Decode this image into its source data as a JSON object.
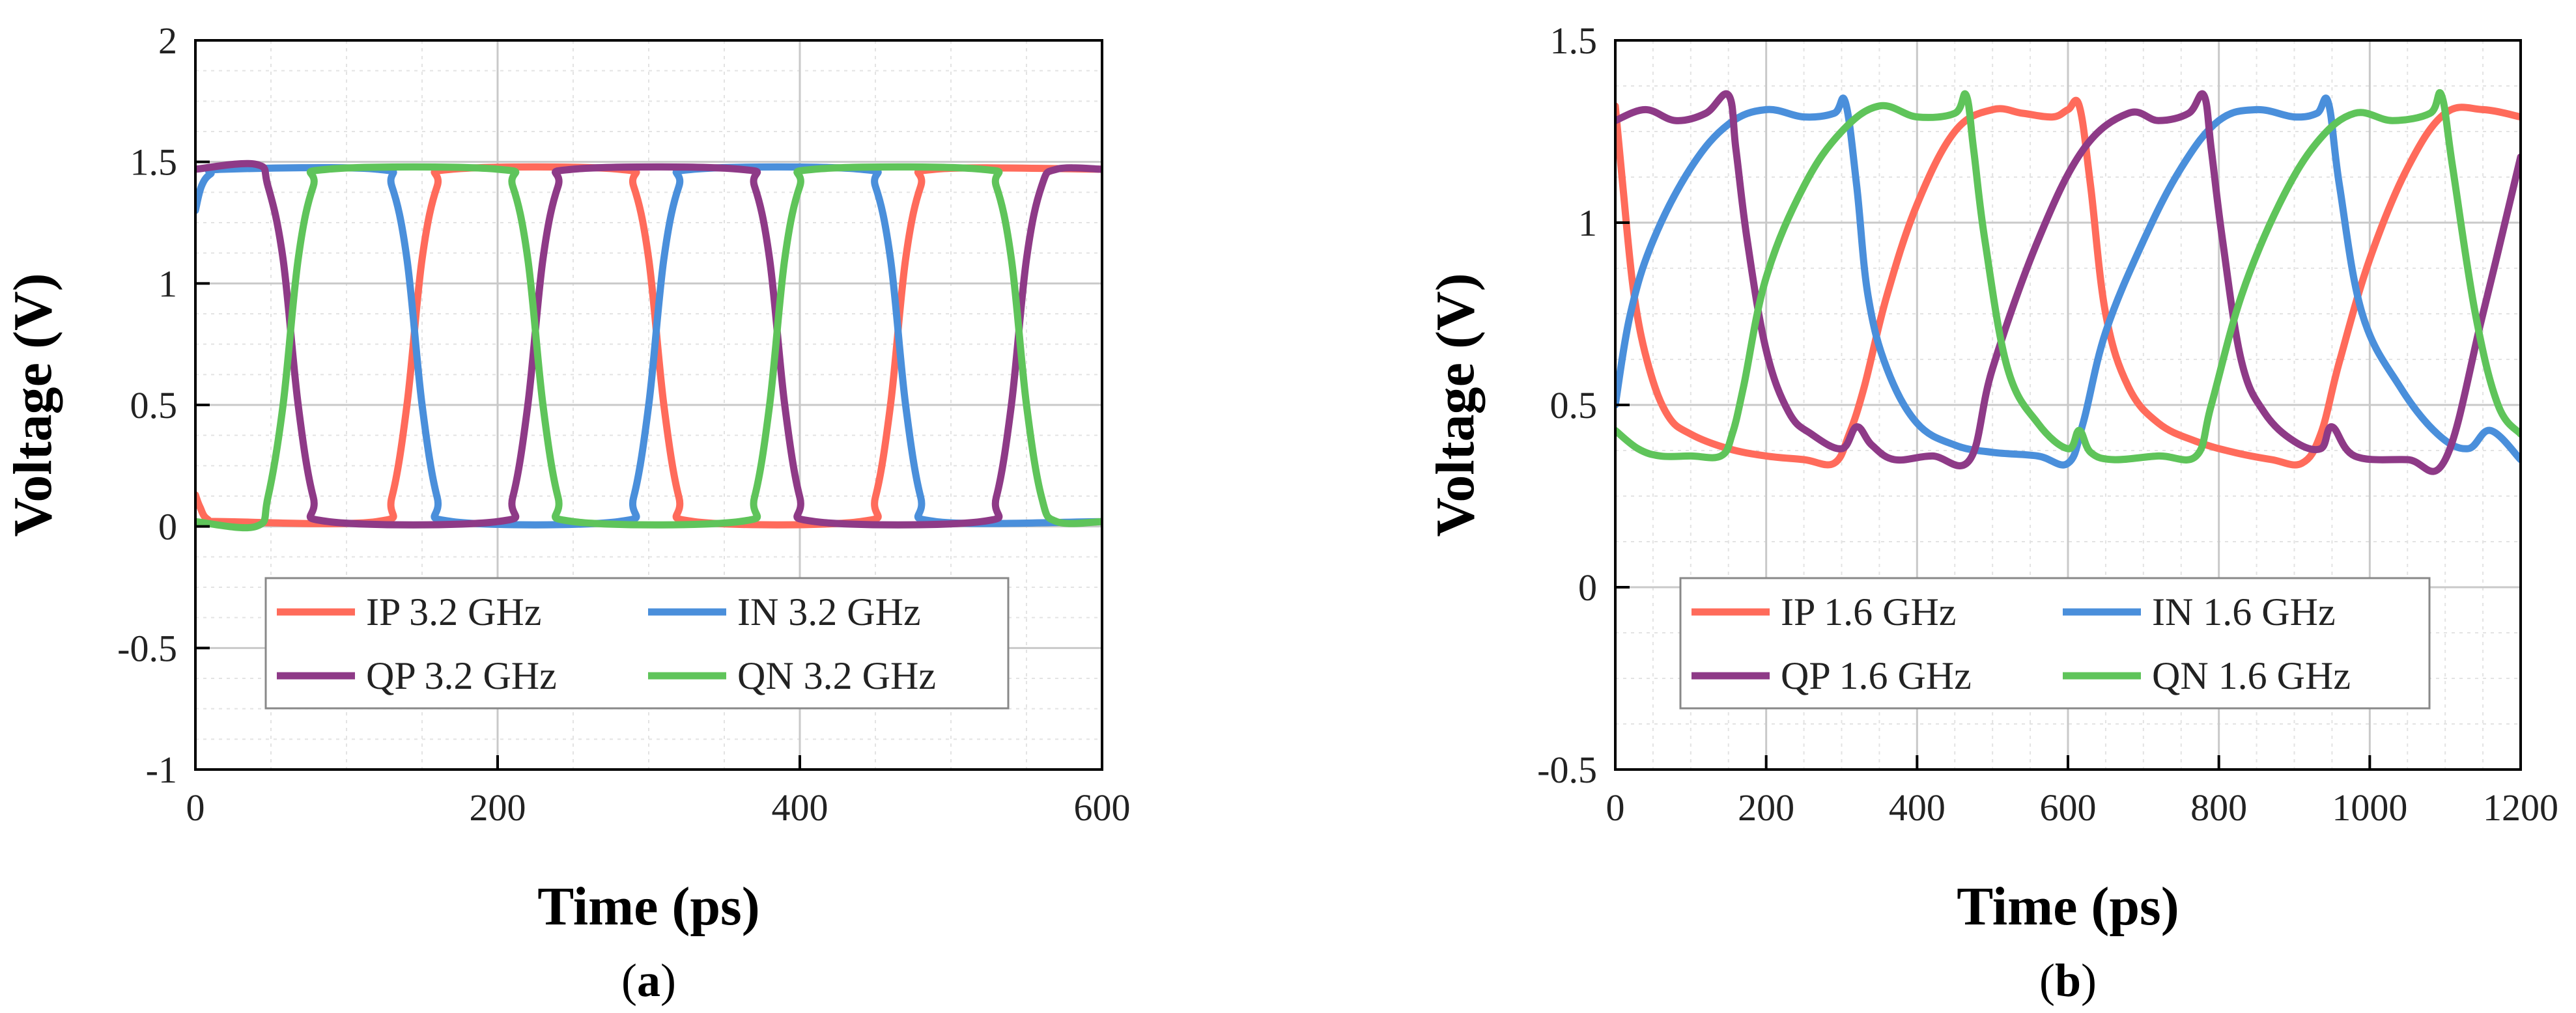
{
  "chart_data": [
    {
      "id": "a",
      "type": "line",
      "caption": "a",
      "xlabel": "Time (ps)",
      "ylabel": "Voltage (V)",
      "xlim": [
        0,
        600
      ],
      "ylim": [
        -1,
        2
      ],
      "xticks": [
        0,
        200,
        400,
        600
      ],
      "yticks": [
        -1,
        -0.5,
        0,
        0.5,
        1,
        1.5,
        2
      ],
      "ytick_labels": [
        "-1",
        "-0.5",
        "0",
        "0.5",
        "1",
        "1.5",
        "2"
      ],
      "grid": true,
      "legend_position": "bottom-center",
      "legend_columns": 2,
      "series": [
        {
          "name": "IP 3.2 GHz",
          "color": "#ff6b5b",
          "x": [
            0,
            3,
            8,
            20,
            120,
            130,
            140,
            150,
            160,
            170,
            280,
            290,
            300,
            310,
            320,
            330,
            440,
            450,
            460,
            470,
            480,
            490,
            600
          ],
          "y": [
            0.13,
            0.08,
            0.03,
            0.02,
            0.02,
            0.12,
            0.5,
            1.1,
            1.4,
            1.47,
            1.47,
            1.4,
            1.1,
            0.5,
            0.12,
            0.02,
            0.02,
            0.12,
            0.5,
            1.1,
            1.4,
            1.47,
            1.47
          ]
        },
        {
          "name": "IN 3.2 GHz",
          "color": "#4a8fdb",
          "x": [
            0,
            4,
            10,
            20,
            120,
            130,
            140,
            150,
            160,
            170,
            280,
            290,
            300,
            310,
            320,
            330,
            440,
            450,
            460,
            470,
            480,
            490,
            600
          ],
          "y": [
            1.3,
            1.4,
            1.45,
            1.47,
            1.47,
            1.4,
            1.1,
            0.5,
            0.12,
            0.02,
            0.02,
            0.12,
            0.5,
            1.1,
            1.4,
            1.47,
            1.47,
            1.4,
            1.1,
            0.5,
            0.12,
            0.02,
            0.02
          ]
        },
        {
          "name": "QP 3.2 GHz",
          "color": "#8e3a87",
          "x": [
            0,
            40,
            48,
            58,
            68,
            78,
            88,
            200,
            210,
            220,
            230,
            240,
            250,
            360,
            370,
            380,
            390,
            400,
            410,
            520,
            530,
            540,
            550,
            560,
            570,
            600
          ],
          "y": [
            1.47,
            1.49,
            1.4,
            1.1,
            0.5,
            0.12,
            0.02,
            0.02,
            0.12,
            0.5,
            1.1,
            1.4,
            1.47,
            1.47,
            1.4,
            1.1,
            0.5,
            0.12,
            0.02,
            0.02,
            0.12,
            0.5,
            1.1,
            1.4,
            1.47,
            1.47
          ]
        },
        {
          "name": "QN 3.2 GHz",
          "color": "#5fc45a",
          "x": [
            0,
            40,
            48,
            58,
            68,
            78,
            88,
            200,
            210,
            220,
            230,
            240,
            250,
            360,
            370,
            380,
            390,
            400,
            410,
            520,
            530,
            540,
            550,
            560,
            570,
            600
          ],
          "y": [
            0.02,
            0.0,
            0.12,
            0.5,
            1.1,
            1.4,
            1.47,
            1.47,
            1.4,
            1.1,
            0.5,
            0.12,
            0.02,
            0.02,
            0.12,
            0.5,
            1.1,
            1.4,
            1.47,
            1.47,
            1.4,
            1.1,
            0.5,
            0.12,
            0.02,
            0.02
          ]
        }
      ]
    },
    {
      "id": "b",
      "type": "line",
      "caption": "b",
      "xlabel": "Time (ps)",
      "ylabel": "Voltage (V)",
      "xlim": [
        0,
        1200
      ],
      "ylim": [
        -0.5,
        1.5
      ],
      "xticks": [
        0,
        200,
        400,
        600,
        800,
        1000,
        1200
      ],
      "yticks": [
        -0.5,
        0,
        0.5,
        1,
        1.5
      ],
      "ytick_labels": [
        "-0.5",
        "0",
        "0.5",
        "1",
        "1.5"
      ],
      "grid": true,
      "legend_position": "bottom-center",
      "legend_columns": 2,
      "series": [
        {
          "name": "IP 1.6 GHz",
          "color": "#ff6b5b",
          "x": [
            0,
            10,
            25,
            45,
            70,
            100,
            150,
            200,
            250,
            290,
            310,
            330,
            360,
            400,
            450,
            500,
            540,
            580,
            600,
            615,
            630,
            650,
            680,
            720,
            770,
            820,
            870,
            910,
            935,
            960,
            1000,
            1050,
            1100,
            1150,
            1200
          ],
          "y": [
            1.32,
            1.1,
            0.8,
            0.6,
            0.47,
            0.42,
            0.38,
            0.36,
            0.35,
            0.34,
            0.42,
            0.55,
            0.8,
            1.05,
            1.25,
            1.31,
            1.3,
            1.29,
            1.31,
            1.32,
            1.1,
            0.75,
            0.55,
            0.45,
            0.4,
            0.37,
            0.35,
            0.34,
            0.42,
            0.62,
            0.9,
            1.15,
            1.3,
            1.31,
            1.29
          ]
        },
        {
          "name": "IN 1.6 GHz",
          "color": "#4a8fdb",
          "x": [
            0,
            20,
            50,
            100,
            150,
            200,
            250,
            290,
            305,
            320,
            335,
            360,
            400,
            450,
            500,
            560,
            600,
            620,
            650,
            700,
            750,
            800,
            850,
            900,
            930,
            945,
            960,
            990,
            1040,
            1090,
            1130,
            1160,
            1200
          ],
          "y": [
            0.5,
            0.75,
            0.95,
            1.15,
            1.27,
            1.31,
            1.29,
            1.3,
            1.33,
            1.1,
            0.8,
            0.6,
            0.45,
            0.39,
            0.37,
            0.36,
            0.34,
            0.45,
            0.7,
            0.95,
            1.15,
            1.28,
            1.31,
            1.29,
            1.3,
            1.33,
            1.1,
            0.75,
            0.55,
            0.42,
            0.38,
            0.43,
            0.35
          ]
        },
        {
          "name": "QP 1.6 GHz",
          "color": "#8e3a87",
          "x": [
            0,
            40,
            80,
            120,
            150,
            160,
            175,
            200,
            230,
            260,
            300,
            320,
            340,
            370,
            420,
            470,
            500,
            560,
            620,
            680,
            720,
            760,
            780,
            790,
            805,
            830,
            860,
            900,
            935,
            950,
            980,
            1050,
            1100,
            1150,
            1200
          ],
          "y": [
            1.28,
            1.31,
            1.28,
            1.3,
            1.35,
            1.2,
            0.95,
            0.65,
            0.48,
            0.42,
            0.38,
            0.44,
            0.39,
            0.35,
            0.36,
            0.35,
            0.6,
            0.95,
            1.2,
            1.3,
            1.28,
            1.3,
            1.35,
            1.2,
            0.95,
            0.62,
            0.48,
            0.4,
            0.38,
            0.44,
            0.36,
            0.35,
            0.35,
            0.75,
            1.18
          ]
        },
        {
          "name": "QN 1.6 GHz",
          "color": "#5fc45a",
          "x": [
            0,
            30,
            60,
            100,
            140,
            155,
            170,
            200,
            250,
            300,
            350,
            400,
            450,
            465,
            475,
            490,
            520,
            560,
            600,
            615,
            630,
            660,
            720,
            770,
            790,
            830,
            880,
            930,
            980,
            1030,
            1080,
            1095,
            1110,
            1140,
            1170,
            1200
          ],
          "y": [
            0.43,
            0.38,
            0.36,
            0.36,
            0.36,
            0.42,
            0.55,
            0.85,
            1.1,
            1.25,
            1.32,
            1.29,
            1.3,
            1.35,
            1.2,
            0.95,
            0.6,
            0.45,
            0.38,
            0.43,
            0.37,
            0.35,
            0.36,
            0.36,
            0.5,
            0.8,
            1.05,
            1.22,
            1.3,
            1.28,
            1.3,
            1.35,
            1.15,
            0.75,
            0.5,
            0.42
          ]
        }
      ]
    }
  ]
}
